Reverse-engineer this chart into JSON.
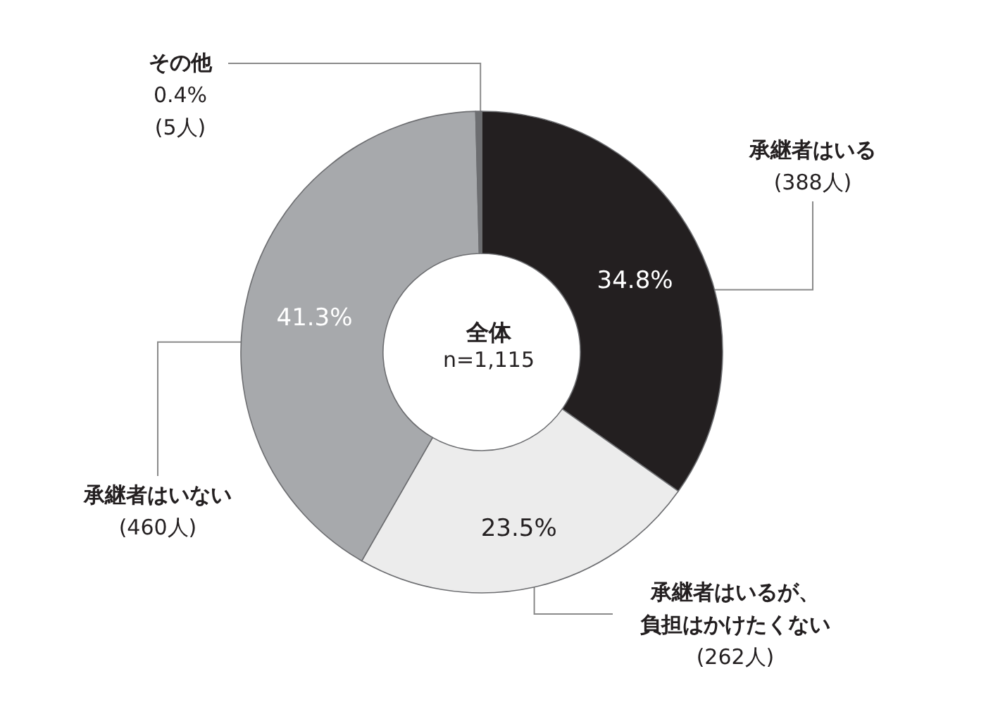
{
  "chart_data": {
    "type": "donut",
    "title": "全体",
    "subtitle": "n=1,115",
    "categories": [
      "承継者はいる\n(388人)",
      "承継者はいるが、負担はかけたくない\n(262人)",
      "承継者はいない\n(460人)",
      "その他\n0.4%\n(5人)"
    ],
    "values": [
      34.8,
      23.5,
      41.3,
      0.4
    ],
    "value_labels": [
      "34.8%",
      "23.5%",
      "41.3%",
      null
    ],
    "colors": [
      "#231f20",
      "#ececec",
      "#a7a9ac",
      "#6d6e71"
    ]
  }
}
